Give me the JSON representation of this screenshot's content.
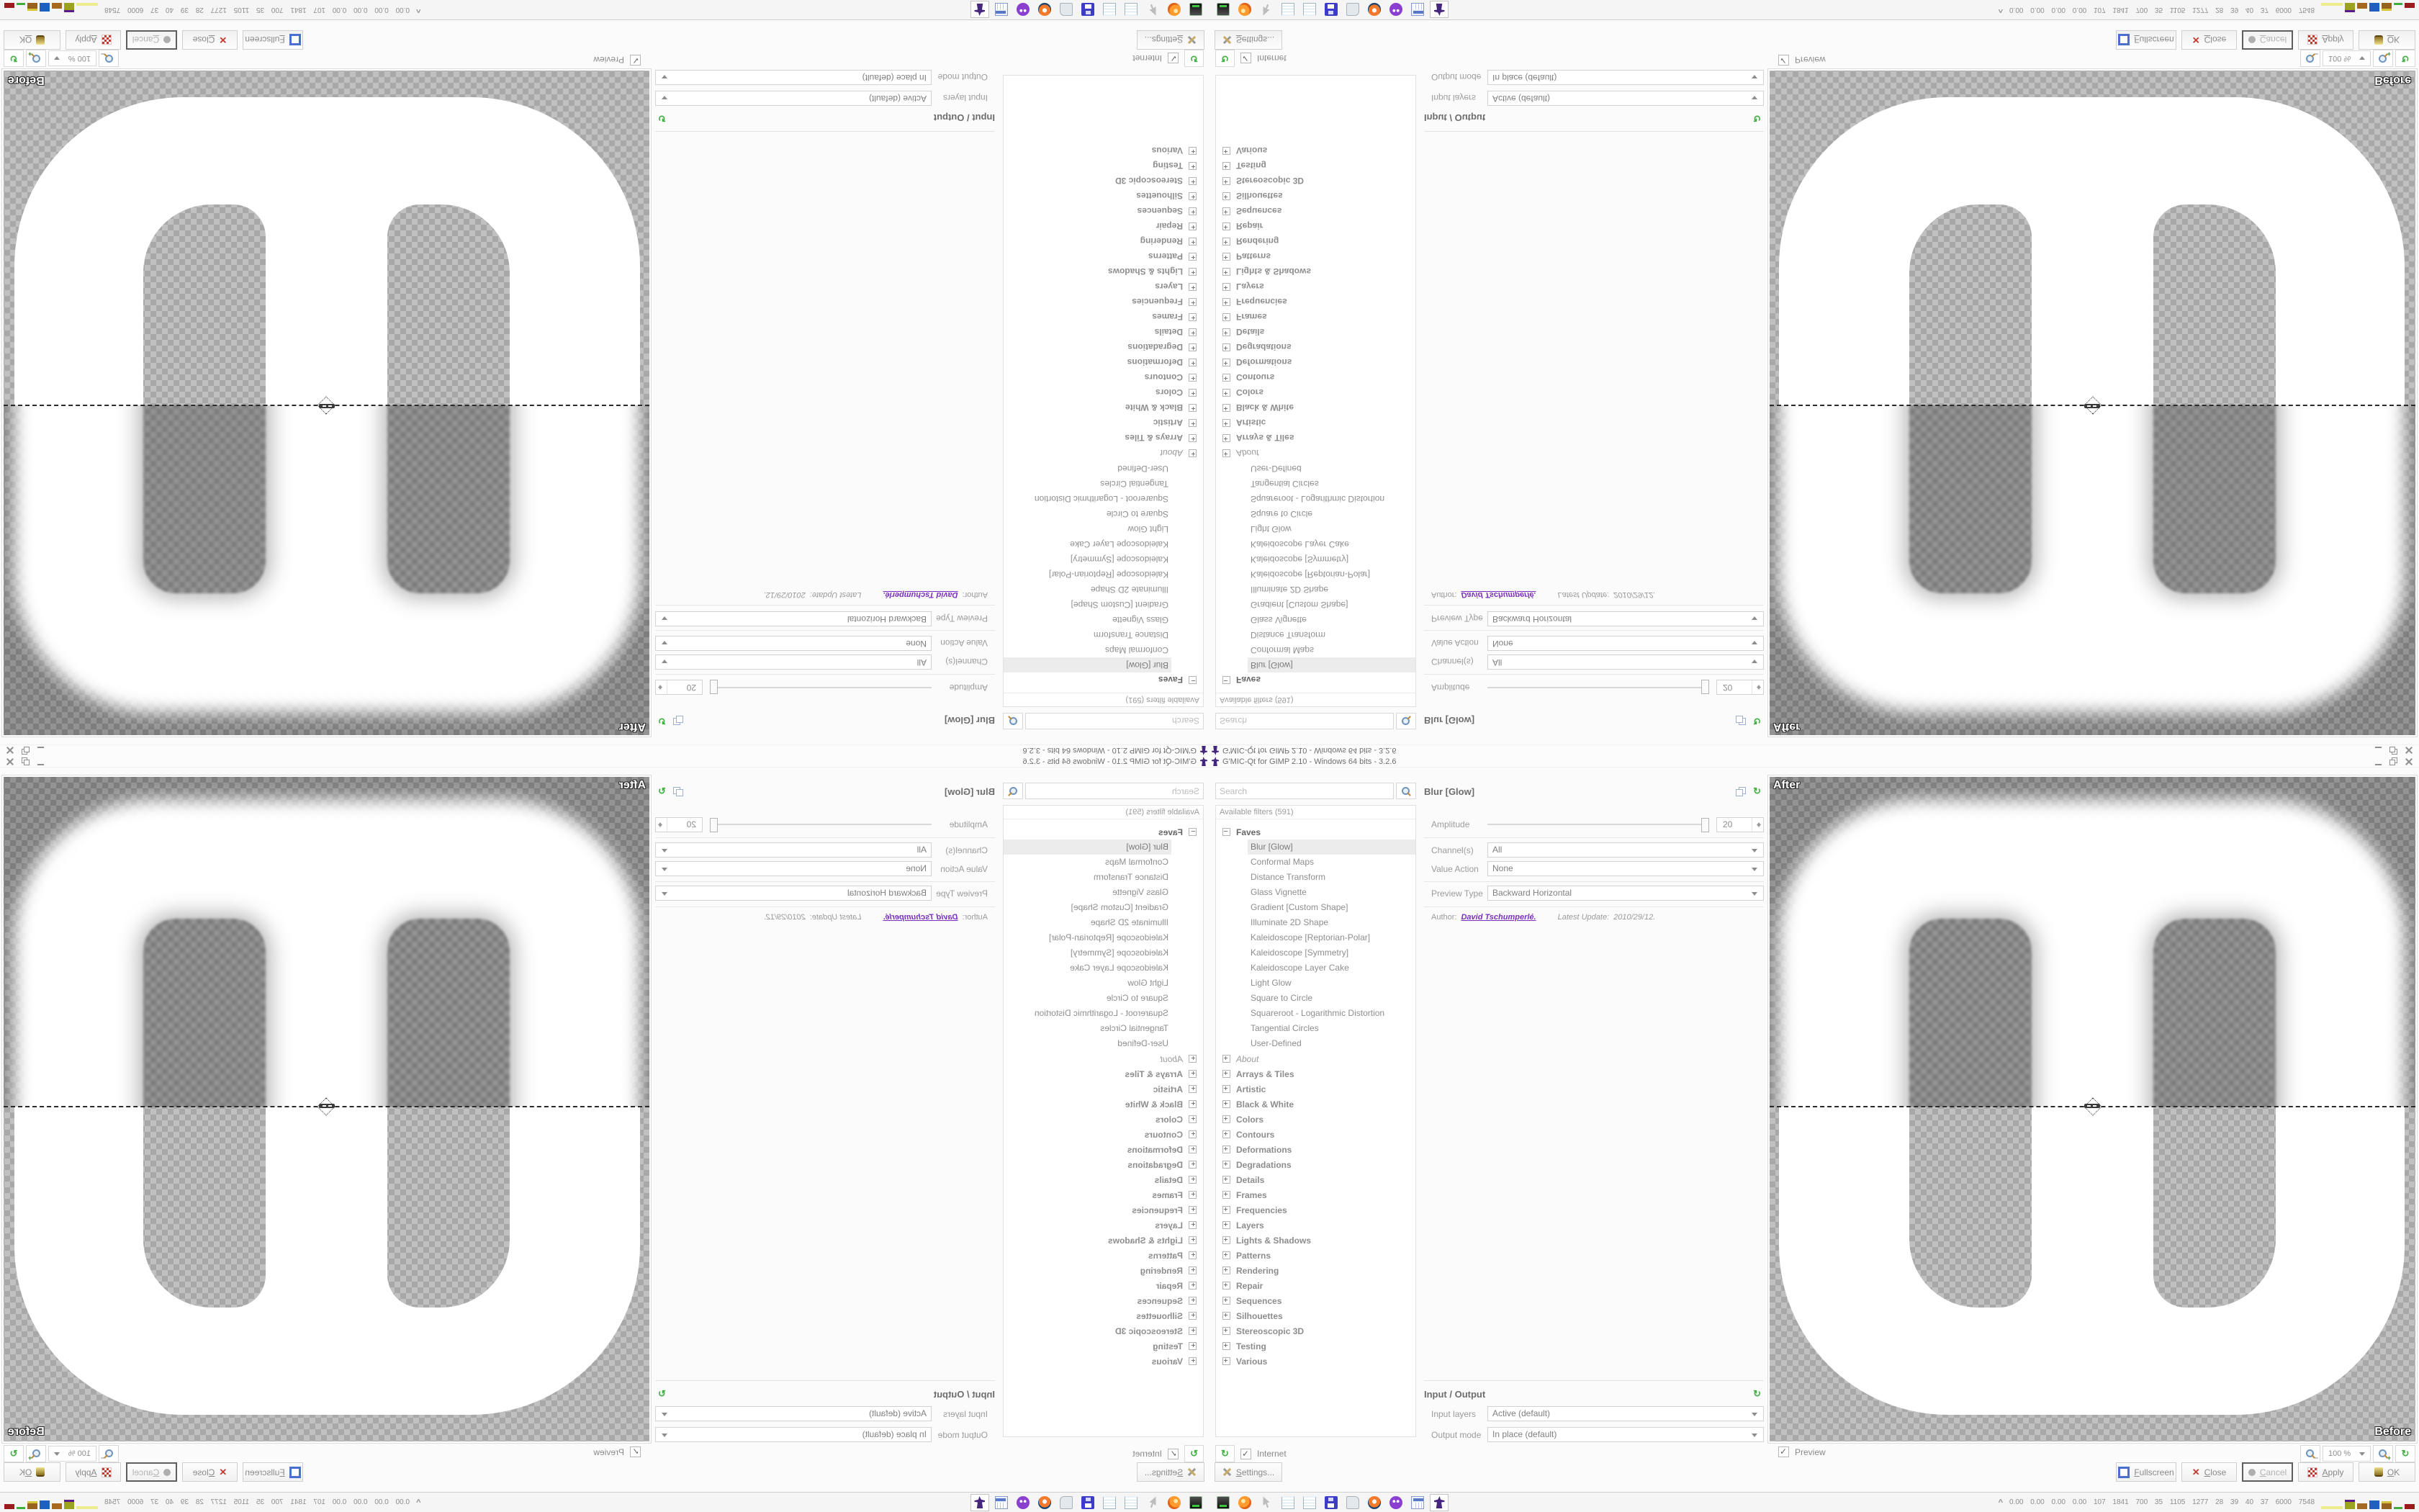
{
  "window": {
    "title": "G'MIC-Qt for GIMP 2.10 - Windows 64 bits - 3.2.6"
  },
  "filters": {
    "search_placeholder": "Search",
    "header": "Available filters (591)",
    "faves_label": "Faves",
    "faves": [
      {
        "label": "Blur [Glow]",
        "selected": true
      },
      {
        "label": "Conformal Maps"
      },
      {
        "label": "Distance Transform"
      },
      {
        "label": "Glass Vignette"
      },
      {
        "label": "Gradient [Custom Shape]"
      },
      {
        "label": "Illuminate 2D Shape"
      },
      {
        "label": "Kaleidoscope [Reptorian-Polar]"
      },
      {
        "label": "Kaleidoscope [Symmetry]"
      },
      {
        "label": "Kaleidoscope Layer Cake"
      },
      {
        "label": "Light Glow"
      },
      {
        "label": "Square to Circle"
      },
      {
        "label": "Squareroot - Logarithmic Distortion"
      },
      {
        "label": "Tangential Circles"
      },
      {
        "label": "User-Defined"
      }
    ],
    "categories": [
      {
        "label": "About",
        "cls": "italic"
      },
      {
        "label": "Arrays & Tiles"
      },
      {
        "label": "Artistic"
      },
      {
        "label": "Black & White"
      },
      {
        "label": "Colors"
      },
      {
        "label": "Contours"
      },
      {
        "label": "Deformations"
      },
      {
        "label": "Degradations"
      },
      {
        "label": "Details"
      },
      {
        "label": "Frames"
      },
      {
        "label": "Frequencies"
      },
      {
        "label": "Layers"
      },
      {
        "label": "Lights & Shadows"
      },
      {
        "label": "Patterns"
      },
      {
        "label": "Rendering"
      },
      {
        "label": "Repair"
      },
      {
        "label": "Sequences"
      },
      {
        "label": "Silhouettes"
      },
      {
        "label": "Stereoscopic 3D"
      },
      {
        "label": "Testing"
      },
      {
        "label": "Various"
      }
    ],
    "internet_label": "Internet"
  },
  "params": {
    "title": "Blur [Glow]",
    "amplitude": {
      "label": "Amplitude",
      "value": "20"
    },
    "channels": {
      "label": "Channel(s)",
      "value": "All"
    },
    "value_action": {
      "label": "Value Action",
      "value": "None"
    },
    "preview_type": {
      "label": "Preview Type",
      "value": "Backward Horizontal"
    },
    "author": {
      "label": "Author:",
      "name": "David Tschumperlé.",
      "update_label": "Latest Update:",
      "update_value": "2010/29/12."
    }
  },
  "io": {
    "title": "Input / Output",
    "input_layers": {
      "label": "Input layers",
      "value": "Active (default)"
    },
    "output_mode": {
      "label": "Output mode",
      "value": "In place (default)"
    }
  },
  "preview": {
    "after_label": "After",
    "before_label": "Before",
    "checkbox_label": "Preview",
    "zoom_value": "100 %"
  },
  "actions": {
    "settings": "Settings...",
    "fullscreen": "Fullscreen",
    "close": "Close",
    "cancel": "Cancel",
    "apply": "Apply",
    "ok": "OK"
  },
  "taskbar": {
    "icons": [
      {
        "name": "terminal-icon",
        "cls": "ic-terminal"
      },
      {
        "name": "firefox-icon",
        "cls": "ic-firefox"
      },
      {
        "name": "cursor-icon",
        "cls": "ic-cursor"
      },
      {
        "name": "notepad-icon",
        "cls": "ic-notepad"
      },
      {
        "name": "notepad2-icon",
        "cls": "ic-notepad"
      },
      {
        "name": "floppy-64-icon",
        "cls": "ic-floppy"
      },
      {
        "name": "script-icon",
        "cls": "ic-script"
      },
      {
        "name": "blender-icon",
        "cls": "ic-blender"
      },
      {
        "name": "avatar-icon",
        "cls": "ic-avatar"
      },
      {
        "name": "calculator-icon",
        "cls": "ic-calc"
      },
      {
        "name": "gmic-wizard-icon",
        "cls": "ic-wizard",
        "active": true
      }
    ],
    "monitor": "0.00 0.00 0.00 0.00 107 1841 700 35 1105 1277 28 39 40 37 6000 7548",
    "bars": [
      {
        "w": 30,
        "h": 4,
        "color": "#ecec8c"
      },
      {
        "w": 14,
        "h": 13,
        "color": "#9aa21e",
        "cap": "#5a1a8a"
      },
      {
        "w": 14,
        "h": 8,
        "color": "#a5691f"
      },
      {
        "w": 14,
        "h": 12,
        "color": "#1f5fbf"
      },
      {
        "w": 14,
        "h": 11,
        "color": "#96621d",
        "cap": "#d8c438"
      },
      {
        "w": 12,
        "h": 3,
        "color": "#3fae3f"
      },
      {
        "w": 14,
        "h": 7,
        "color": "#9b1c1c"
      }
    ]
  },
  "colors": {
    "accent_purple": "#45277e",
    "link_purple": "#7a2fbe",
    "refresh_green": "#3faf3f",
    "close_red": "#c23a2f",
    "fullscreen_blue": "#4a6fd0",
    "selection_bg": "#ececec",
    "checker_after_dark": "#7d7d7d",
    "checker_after_light": "#949494",
    "checker_before_dark": "#a8a8a8",
    "checker_before_light": "#c0c0c0"
  }
}
